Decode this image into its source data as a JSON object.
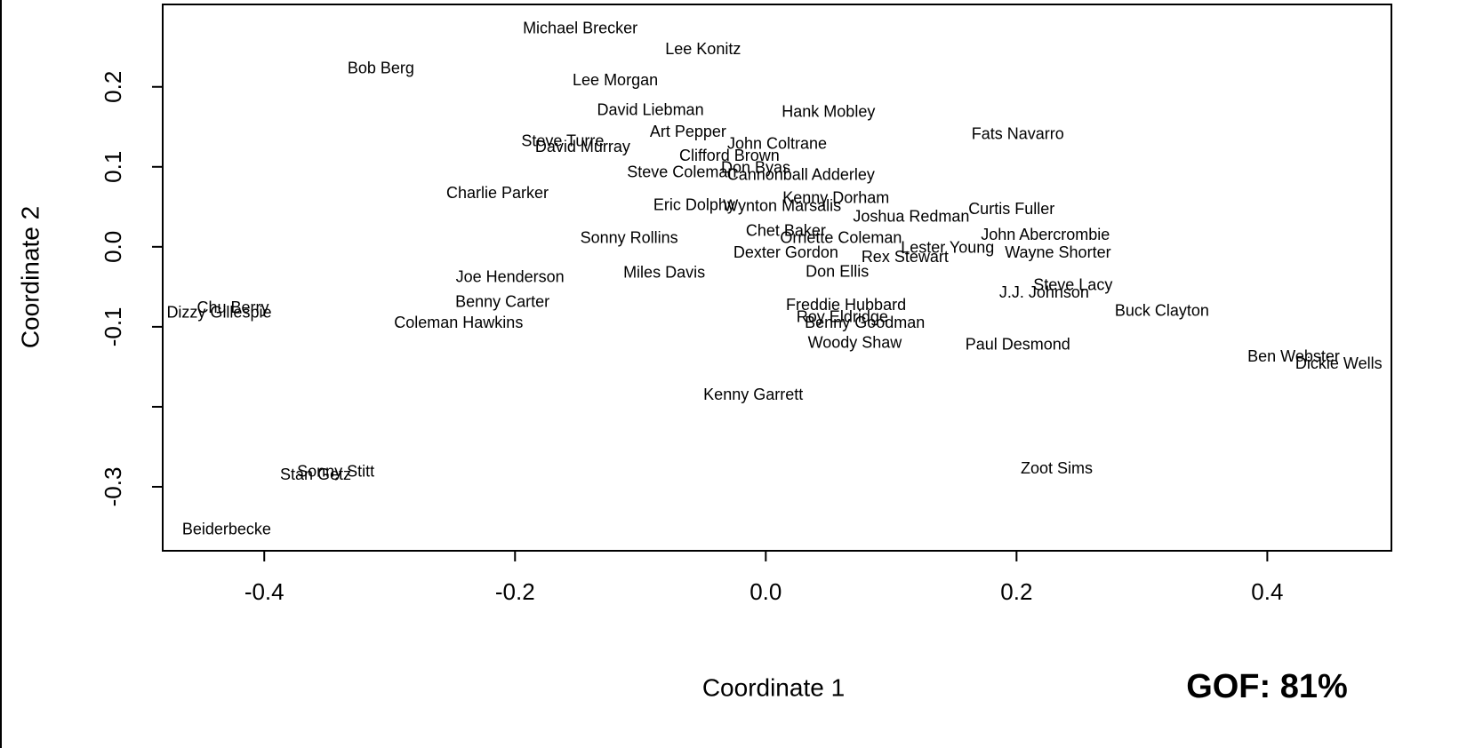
{
  "chart_data": {
    "type": "scatter",
    "xlabel": "Coordinate 1",
    "ylabel": "Coordinate 2",
    "annotation": "GOF: 81%",
    "annotation_color": "#f26b1d",
    "xlim": [
      -0.481,
      0.499
    ],
    "ylim": [
      -0.38,
      0.303
    ],
    "xticks": [
      {
        "value": -0.4,
        "label": "-0.4"
      },
      {
        "value": -0.2,
        "label": "-0.2"
      },
      {
        "value": 0,
        "label": "0.0"
      },
      {
        "value": 0.2,
        "label": "0.2"
      },
      {
        "value": 0.4,
        "label": "0.4"
      }
    ],
    "yticks": [
      0.2,
      0.1,
      {
        "value": 0,
        "label": "0.0"
      },
      -0.1,
      {
        "value": -0.2,
        "label": null
      },
      -0.3
    ],
    "labels": [
      "Michael Brecker",
      "Lee Konitz",
      "Bob Berg",
      "Lee Morgan",
      "David Liebman",
      "Hank Mobley",
      "Art Pepper",
      "Fats Navarro",
      "Steve Turre",
      "David Murray",
      "John Coltrane",
      "Clifford Brown",
      "Steve Coleman",
      "Don Byas",
      "Cannonball Adderley",
      "Charlie Parker",
      "Kenny Dorham",
      "Eric Dolphy",
      "Wynton Marsalis",
      "Joshua Redman",
      "Curtis Fuller",
      "Sonny Rollins",
      "Chet Baker",
      "Ornette Coleman",
      "John Abercrombie",
      "Dexter Gordon",
      "Rex Stewart",
      "Lester Young",
      "Wayne Shorter",
      "Joe Henderson",
      "Don Ellis",
      "Miles Davis",
      "Benny Carter",
      "Steve Lacy",
      "J.J. Johnson",
      "Chu Berry",
      "Dizzy Gillespie",
      "Freddie Hubbard",
      "Buck Clayton",
      "Roy Eldridge",
      "Coleman Hawkins",
      "Benny Goodman",
      "Woody Shaw",
      "Paul Desmond",
      "Ben Webster",
      "Dickie Wells",
      "Kenny Garrett",
      "Zoot Sims",
      "Sonny Stitt",
      "Stan Getz",
      "Beiderbecke"
    ],
    "x": [
      -0.148,
      -0.05,
      -0.307,
      -0.12,
      -0.092,
      0.05,
      -0.062,
      0.201,
      -0.162,
      -0.146,
      0.009,
      -0.029,
      -0.067,
      -0.008,
      0.028,
      -0.214,
      0.056,
      -0.057,
      0.013,
      0.116,
      0.196,
      -0.109,
      0.016,
      0.06,
      0.223,
      0.016,
      0.111,
      0.145,
      0.233,
      -0.204,
      0.057,
      -0.081,
      -0.21,
      0.245,
      0.222,
      -0.425,
      -0.436,
      0.064,
      0.316,
      0.061,
      -0.245,
      0.079,
      0.071,
      0.201,
      0.421,
      0.457,
      -0.01,
      0.232,
      -0.343,
      -0.359,
      -0.43
    ],
    "y": [
      0.272,
      0.246,
      0.222,
      0.207,
      0.17,
      0.168,
      0.143,
      0.14,
      0.131,
      0.124,
      0.128,
      0.113,
      0.092,
      0.098,
      0.089,
      0.066,
      0.06,
      0.051,
      0.05,
      0.037,
      0.046,
      0.01,
      0.019,
      0.01,
      0.014,
      -0.008,
      -0.014,
      -0.002,
      -0.008,
      -0.039,
      -0.032,
      -0.033,
      -0.07,
      -0.049,
      -0.058,
      -0.077,
      -0.083,
      -0.074,
      -0.081,
      -0.089,
      -0.096,
      -0.096,
      -0.121,
      -0.123,
      -0.138,
      -0.147,
      -0.186,
      -0.278,
      -0.282,
      -0.286,
      -0.354
    ]
  }
}
